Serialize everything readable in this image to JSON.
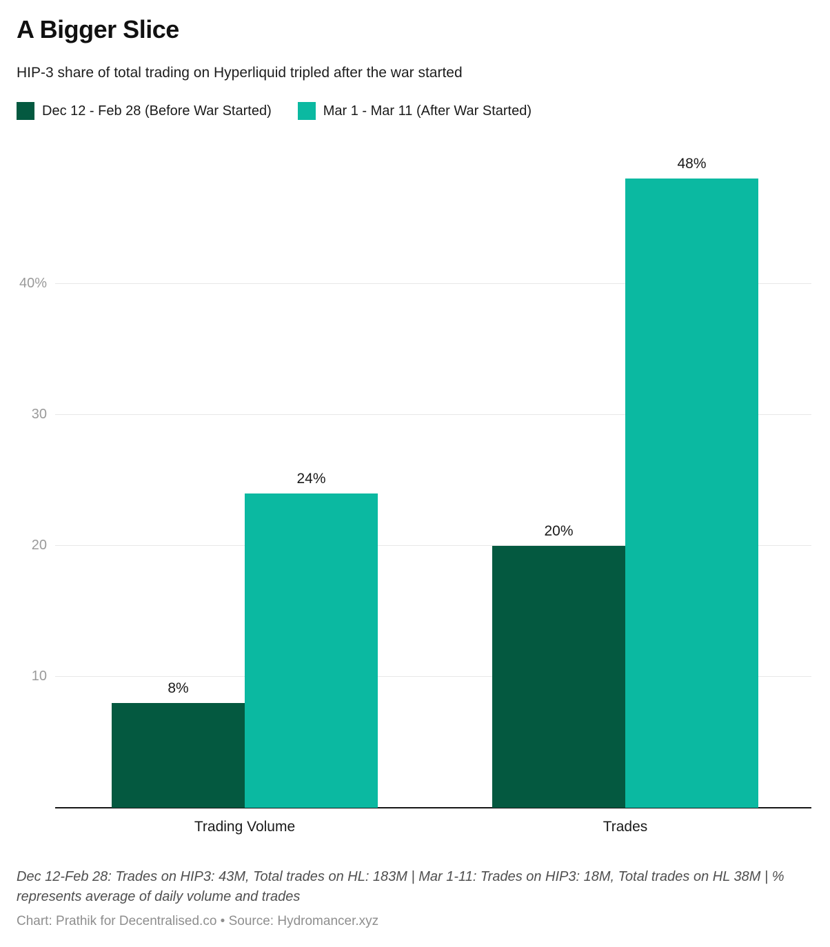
{
  "header": {
    "title": "A Bigger Slice",
    "subtitle": "HIP-3 share of total trading on Hyperliquid tripled after the war started"
  },
  "chart_data": {
    "type": "bar",
    "title": "A Bigger Slice",
    "subtitle": "HIP-3 share of total trading on Hyperliquid tripled after the war started",
    "categories": [
      "Trading Volume",
      "Trades"
    ],
    "series": [
      {
        "name": "Dec 12 - Feb 28 (Before War Started)",
        "color": "#045940",
        "values": [
          8,
          20
        ]
      },
      {
        "name": "Mar 1 - Mar 11 (After War Started)",
        "color": "#0bb9a1",
        "values": [
          24,
          48
        ]
      }
    ],
    "value_labels": [
      [
        "8%",
        "20%"
      ],
      [
        "24%",
        "48%"
      ]
    ],
    "y_ticks": [
      {
        "value": 10,
        "label": "10"
      },
      {
        "value": 20,
        "label": "20"
      },
      {
        "value": 30,
        "label": "30"
      },
      {
        "value": 40,
        "label": "40%"
      }
    ],
    "ylim": [
      0,
      50.6
    ],
    "xlabel": "",
    "ylabel": "",
    "grid": true,
    "legend_position": "top"
  },
  "colors": {
    "before_war": "#045940",
    "after_war": "#0bb9a1",
    "gridline": "#e7e7e7",
    "axis_line": "#161616",
    "tick_label": "#9a9a9a"
  },
  "footer": {
    "notes": "Dec 12-Feb 28: Trades on HIP3: 43M, Total trades on HL: 183M | Mar 1-11: Trades on HIP3: 18M, Total trades on HL 38M | % represents average of daily volume and trades",
    "credit": "Chart: Prathik for Decentralised.co • Source: Hydromancer.xyz"
  }
}
